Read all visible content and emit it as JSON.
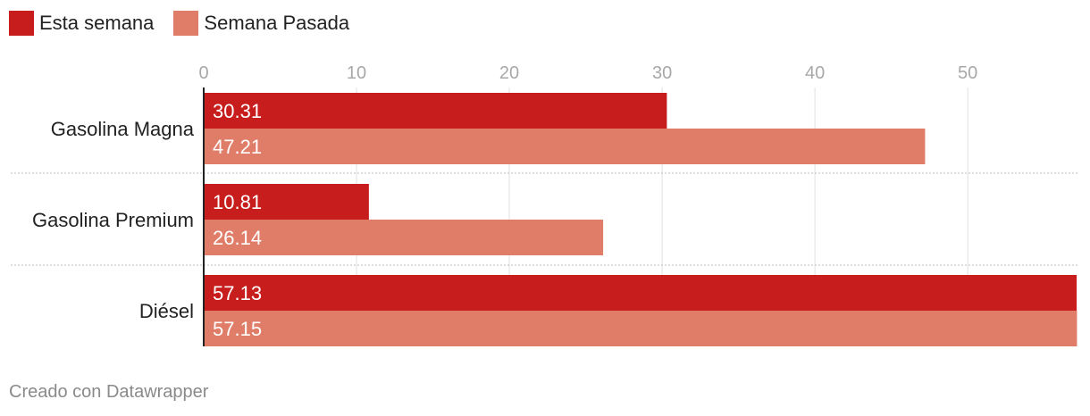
{
  "legend": [
    {
      "label": "Esta semana",
      "color": "#c71e1d"
    },
    {
      "label": "Semana Pasada",
      "color": "#e07d68"
    }
  ],
  "footer": {
    "credit": "Creado con Datawrapper"
  },
  "chart_data": {
    "type": "bar",
    "orientation": "horizontal",
    "categories": [
      "Gasolina Magna",
      "Gasolina Premium",
      "Diésel"
    ],
    "series": [
      {
        "name": "Esta semana",
        "color": "#c71e1d",
        "values": [
          30.31,
          10.81,
          57.13
        ]
      },
      {
        "name": "Semana Pasada",
        "color": "#e07d68",
        "values": [
          47.21,
          26.14,
          57.15
        ]
      }
    ],
    "xticks": [
      0,
      10,
      20,
      30,
      40,
      50
    ],
    "xlim": [
      0,
      57.3
    ],
    "grid": true,
    "legend_position": "top-left"
  }
}
